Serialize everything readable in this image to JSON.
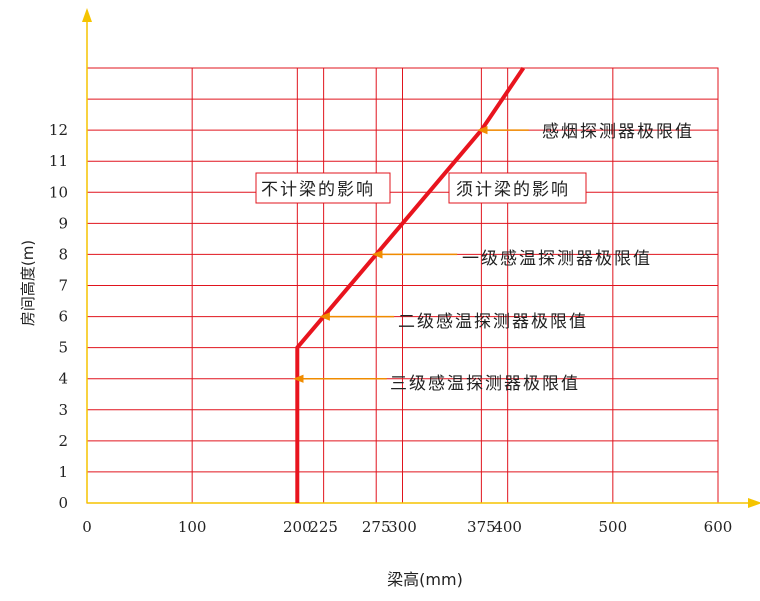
{
  "chart_data": {
    "type": "line",
    "title": "",
    "xlabel": "梁高(mm)",
    "ylabel": "房间高度(m)",
    "x_ticks": [
      {
        "value": 0,
        "label": "0"
      },
      {
        "value": 100,
        "label": "100"
      },
      {
        "value": 200,
        "label": "200"
      },
      {
        "value": 225,
        "label": "225"
      },
      {
        "value": 275,
        "label": "275"
      },
      {
        "value": 300,
        "label": "300"
      },
      {
        "value": 375,
        "label": "375"
      },
      {
        "value": 400,
        "label": "400"
      },
      {
        "value": 500,
        "label": "500"
      },
      {
        "value": 600,
        "label": "600"
      }
    ],
    "y_ticks": [
      "0",
      "1",
      "2",
      "3",
      "4",
      "5",
      "6",
      "7",
      "8",
      "9",
      "10",
      "11",
      "12"
    ],
    "xlim": [
      0,
      600
    ],
    "ylim": [
      0,
      14
    ],
    "grid": true,
    "grid_color": "#e0141e",
    "axis_color": "#f5c400",
    "line_color": "#e8141e",
    "arrow_color": "#f08c00",
    "series": [
      {
        "x": [
          200,
          200,
          225,
          275,
          300,
          375,
          415
        ],
        "y": [
          0,
          5,
          6,
          8,
          9,
          12,
          14
        ]
      }
    ],
    "annotations": [
      {
        "id": "smoke",
        "text": "感烟探测器极限值",
        "arrow_from": [
          420,
          12
        ],
        "arrow_to": [
          372,
          12
        ]
      },
      {
        "id": "heat1",
        "text": "一级感温探测器极限值",
        "arrow_from": [
          352,
          8
        ],
        "arrow_to": [
          272,
          8
        ]
      },
      {
        "id": "heat2",
        "text": "二级感温探测器极限值",
        "arrow_from": [
          292,
          6
        ],
        "arrow_to": [
          222,
          6
        ]
      },
      {
        "id": "heat3",
        "text": "三级感温探测器极限值",
        "arrow_from": [
          285,
          4
        ],
        "arrow_to": [
          197,
          4
        ]
      }
    ],
    "region_labels": [
      {
        "id": "left",
        "text": "不计梁的影响"
      },
      {
        "id": "right",
        "text": "须计梁的影响"
      }
    ]
  }
}
